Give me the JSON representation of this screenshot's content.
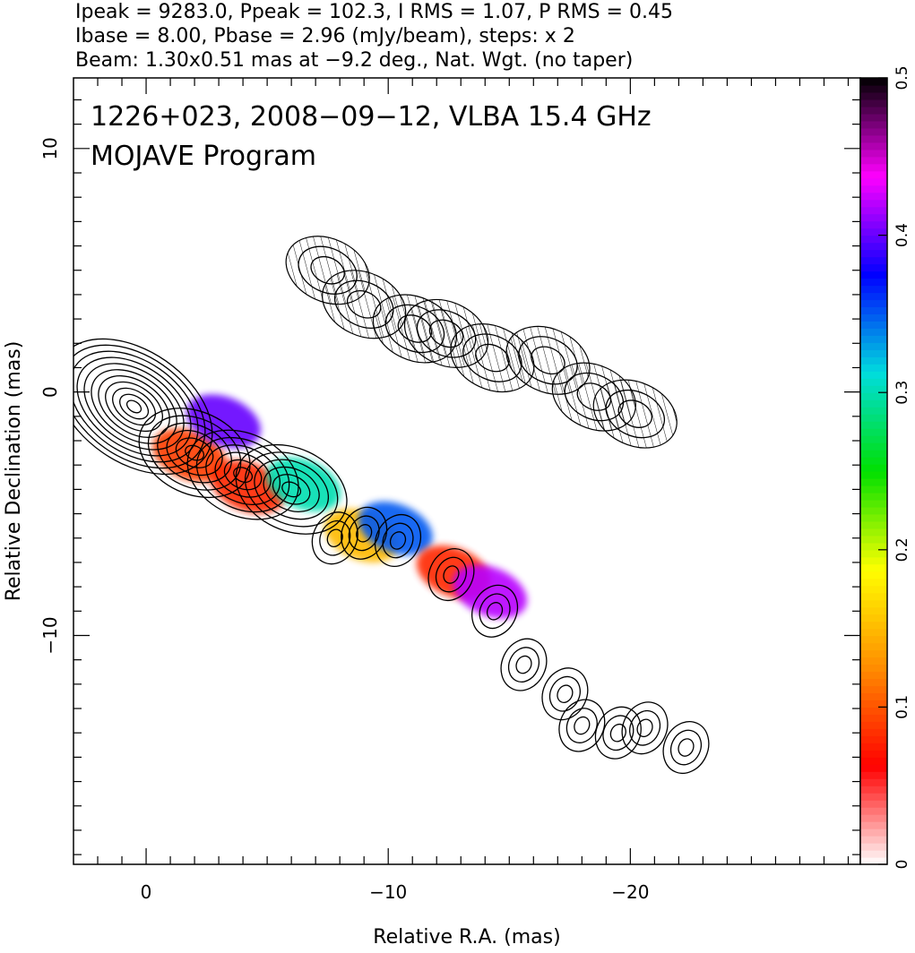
{
  "header": {
    "line1": "Ipeak = 9283.0, Ppeak = 102.3, I RMS = 1.07, P RMS = 0.45",
    "line2": "Ibase = 8.00, Pbase = 2.96 (mJy/beam), steps: x 2",
    "line3": "Beam: 1.30x0.51 mas at −9.2 deg., Nat. Wgt. (no taper)"
  },
  "chart_data": {
    "type": "heatmap",
    "title": "",
    "annotations": [
      "1226+023, 2008−09−12, VLBA 15.4 GHz",
      "MOJAVE Program"
    ],
    "xlabel": "Relative R.A. (mas)",
    "ylabel": "Relative Declination (mas)",
    "xlim": [
      3,
      -29.5
    ],
    "ylim": [
      -19.4,
      12.9
    ],
    "x_ticks": [
      0,
      -10,
      -20
    ],
    "x_tick_labels": [
      "0",
      "−10",
      "−20"
    ],
    "y_ticks": [
      10,
      0,
      -10
    ],
    "y_tick_labels": [
      "10",
      "0",
      "−10"
    ],
    "grid": false,
    "colorbar": {
      "min": 0,
      "max": 0.5,
      "ticks": [
        0,
        0.1,
        0.2,
        0.3,
        0.4,
        0.5
      ],
      "tick_labels": [
        "0",
        "0.1",
        "0.2",
        "0.3",
        "0.4",
        "0.5"
      ],
      "colors": [
        "#ffffff",
        "#ff0000",
        "#ff8c00",
        "#ffff00",
        "#00e000",
        "#00dddd",
        "#0000ff",
        "#ff00ff",
        "#000000"
      ]
    },
    "jet_components": [
      {
        "ra": 0.5,
        "dec": -0.6
      },
      {
        "ra": -2.0,
        "dec": -2.5
      },
      {
        "ra": -4.0,
        "dec": -3.4
      },
      {
        "ra": -6.0,
        "dec": -4.0
      },
      {
        "ra": -7.8,
        "dec": -6.0
      },
      {
        "ra": -9.0,
        "dec": -5.8
      },
      {
        "ra": -10.4,
        "dec": -6.1
      },
      {
        "ra": -12.6,
        "dec": -7.5
      },
      {
        "ra": -14.4,
        "dec": -9.0
      },
      {
        "ra": -15.6,
        "dec": -11.2
      },
      {
        "ra": -17.3,
        "dec": -12.4
      },
      {
        "ra": -18.0,
        "dec": -13.7
      },
      {
        "ra": -19.5,
        "dec": -14.0
      },
      {
        "ra": -20.6,
        "dec": -13.8
      },
      {
        "ra": -22.3,
        "dec": -14.6
      }
    ],
    "polarized_regions": [
      {
        "ra": -1.8,
        "dec": -2.6,
        "fraction": 0.09
      },
      {
        "ra": -4.2,
        "dec": -3.9,
        "fraction": 0.08
      },
      {
        "ra": -6.5,
        "dec": -3.8,
        "fraction": 0.3
      },
      {
        "ra": -3.2,
        "dec": -1.2,
        "fraction": 0.4
      },
      {
        "ra": -8.9,
        "dec": -5.9,
        "fraction": 0.15
      },
      {
        "ra": -10.3,
        "dec": -5.6,
        "fraction": 0.35
      },
      {
        "ra": -12.7,
        "dec": -7.4,
        "fraction": 0.08
      },
      {
        "ra": -14.2,
        "dec": -8.2,
        "fraction": 0.42
      }
    ],
    "offset_jet_components": [
      {
        "ra": -7.5,
        "dec": 5.0
      },
      {
        "ra": -9.0,
        "dec": 3.6
      },
      {
        "ra": -11.1,
        "dec": 2.6
      },
      {
        "ra": -12.4,
        "dec": 2.4
      },
      {
        "ra": -14.3,
        "dec": 1.4
      },
      {
        "ra": -16.6,
        "dec": 1.3
      },
      {
        "ra": -18.5,
        "dec": -0.2
      },
      {
        "ra": -20.2,
        "dec": -0.9
      }
    ]
  }
}
